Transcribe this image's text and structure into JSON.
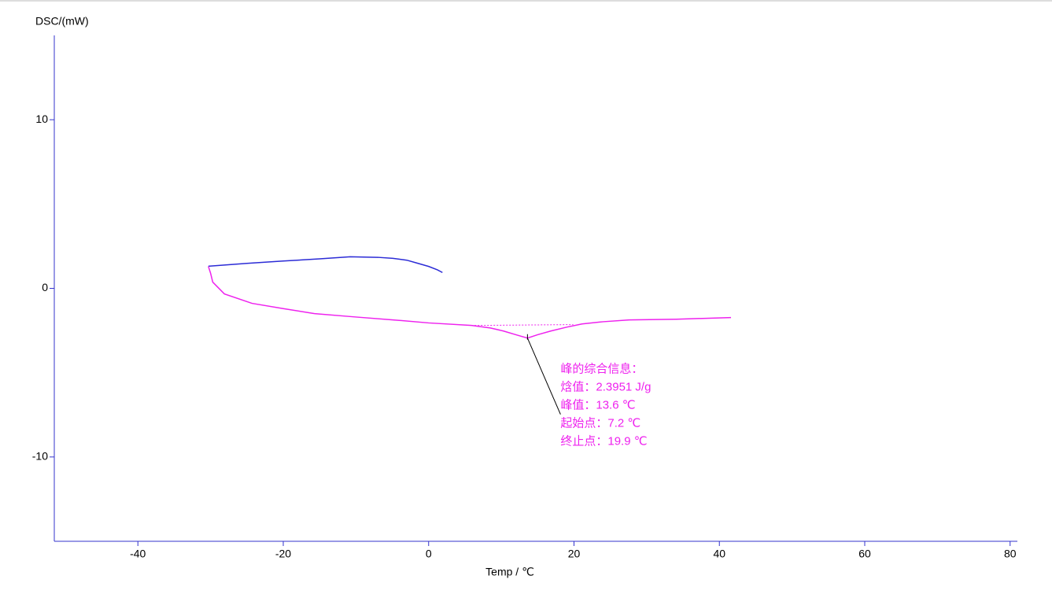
{
  "chart_data": {
    "type": "line",
    "y_label": "DSC/(mW)",
    "x_label": "Temp / ℃",
    "xlim": [
      -51.5,
      81
    ],
    "ylim": [
      -15,
      15
    ],
    "xticks": [
      -40,
      -20,
      0,
      20,
      40,
      60,
      80
    ],
    "yticks": [
      -10,
      0,
      10
    ],
    "axis_color": "#3333cc",
    "series": [
      {
        "color": "#2b2bd6",
        "dashed": false,
        "x": [
          -30.3,
          -25,
          -20,
          -15,
          -10.8,
          -7,
          -4.9,
          -3,
          -1.6,
          0,
          1.2,
          1.9
        ],
        "values": [
          1.31,
          1.48,
          1.62,
          1.75,
          1.87,
          1.84,
          1.78,
          1.67,
          1.5,
          1.3,
          1.1,
          0.94
        ]
      },
      {
        "color": "#ee22ee",
        "dashed": false,
        "x": [
          -30.3,
          -30,
          -29.7,
          -28.1,
          -24.3,
          -20,
          -15.7,
          -10,
          -4.9,
          0,
          5.9,
          8.5,
          10.3,
          12,
          13.6,
          15,
          16.8,
          19,
          21.1,
          24,
          27.6,
          34.1,
          41.6
        ],
        "values": [
          1.3,
          0.9,
          0.37,
          -0.33,
          -0.89,
          -1.2,
          -1.5,
          -1.7,
          -1.87,
          -2.05,
          -2.2,
          -2.35,
          -2.53,
          -2.75,
          -2.95,
          -2.75,
          -2.53,
          -2.3,
          -2.11,
          -1.98,
          -1.87,
          -1.83,
          -1.73
        ]
      },
      {
        "color": "#ee22ee",
        "dashed": true,
        "x": [
          5.9,
          19.9
        ],
        "values": [
          -2.2,
          -2.15
        ]
      }
    ],
    "annotation": {
      "x": 13.6,
      "y": -2.95,
      "color": "#ee22ee",
      "lines": [
        "峰的综合信息：",
        "焓值：2.3951 J/g",
        "峰值：13.6 ℃",
        "起始点：7.2 ℃",
        "终止点：19.9 ℃"
      ]
    }
  }
}
